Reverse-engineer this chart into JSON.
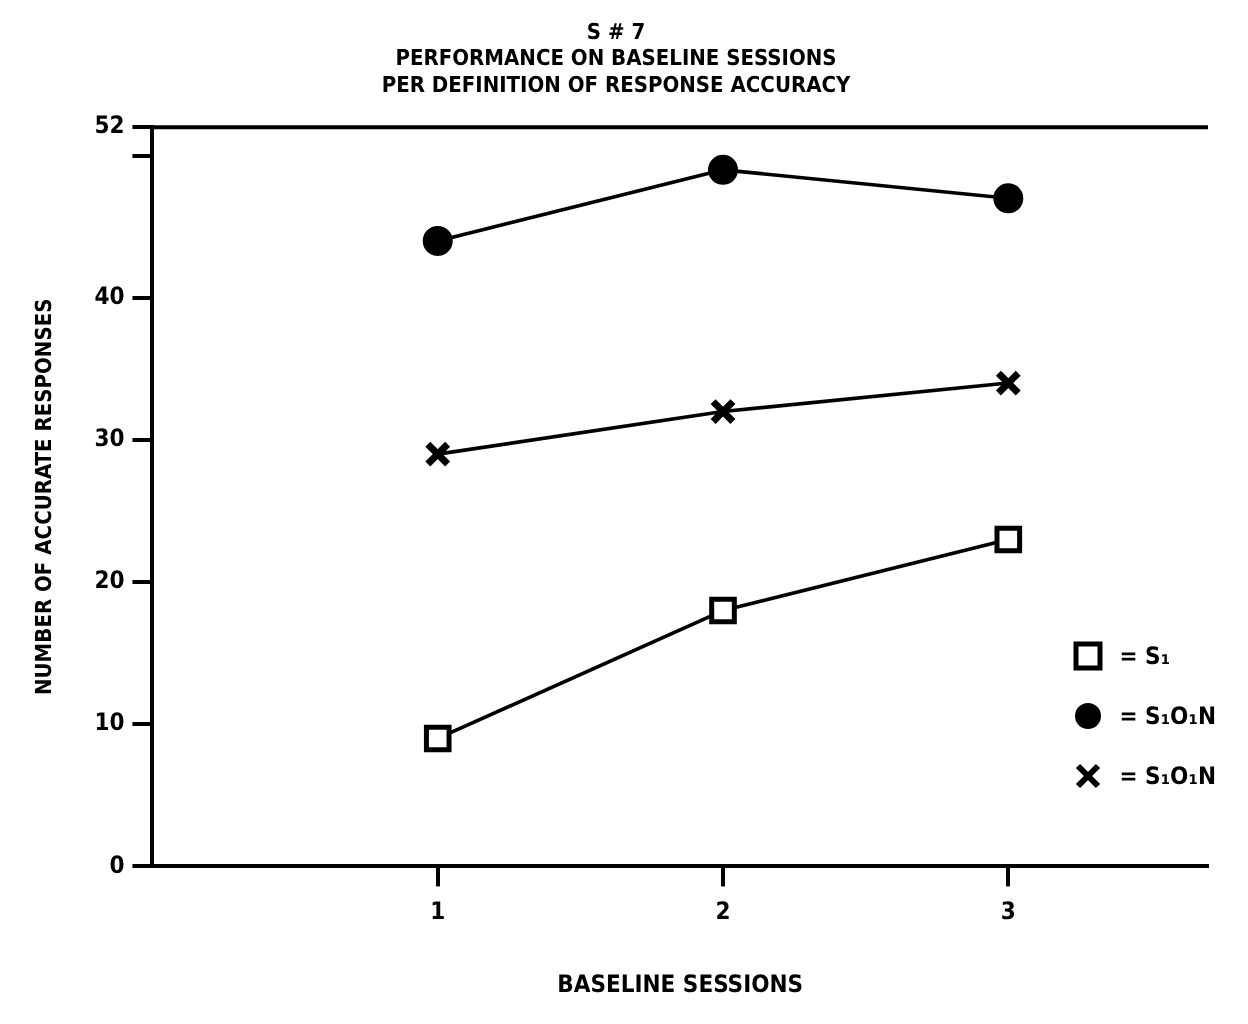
{
  "chart_data": {
    "type": "line",
    "title": [
      "S # 7",
      "PERFORMANCE ON BASELINE SESSIONS",
      "PER DEFINITION OF RESPONSE ACCURACY"
    ],
    "xlabel": "BASELINE SESSIONS",
    "ylabel": "NUMBER OF ACCURATE RESPONSES",
    "x": [
      1,
      2,
      3
    ],
    "xlim": [
      0,
      3.7
    ],
    "xticks": [
      1,
      2,
      3
    ],
    "ylim": [
      0,
      52
    ],
    "yticks": [
      0,
      10,
      20,
      30,
      40,
      {
        "value": 50,
        "label": null
      },
      52
    ],
    "grid": false,
    "legend": "bottom right",
    "line_style": "solid",
    "series": [
      {
        "name": "= S₁",
        "color": "#000000",
        "marker": "square",
        "values": [
          9,
          18,
          23
        ]
      },
      {
        "name": "= S₁O₁N",
        "color": "#000000",
        "marker": "circle",
        "values": [
          44,
          49,
          47
        ]
      },
      {
        "name": "= S₁O₁N",
        "color": "#000000",
        "marker": "cross",
        "values": [
          29,
          32,
          34
        ]
      }
    ]
  }
}
